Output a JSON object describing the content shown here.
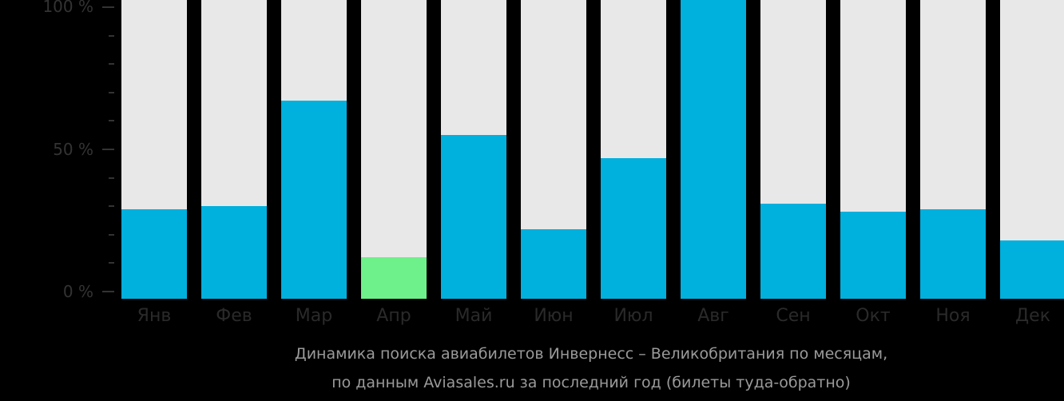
{
  "chart_data": {
    "type": "bar",
    "title": "Динамика поиска авиабилетов Инвернесс – Великобритания по месяцам,",
    "subtitle": "по данным Aviasales.ru за последний год (билеты туда-обратно)",
    "xlabel": "",
    "ylabel": "",
    "ylim": [
      0,
      100
    ],
    "y_ticks": [
      "0 %",
      "50 %",
      "100 %"
    ],
    "grid": false,
    "legend": null,
    "categories": [
      "Янв",
      "Фев",
      "Мар",
      "Апр",
      "Май",
      "Июн",
      "Июл",
      "Авг",
      "Сен",
      "Окт",
      "Ноя",
      "Дек"
    ],
    "values": [
      29,
      30,
      67,
      12,
      55,
      22,
      47,
      100,
      31,
      28,
      29,
      18
    ],
    "highlight_index": 3,
    "colors": {
      "bar": "#00b0dd",
      "highlight": "#6ef08a",
      "background_bar": "#e8e8e8"
    }
  },
  "axis": {
    "y0": "0 %",
    "y50": "50 %",
    "y100": "100 %"
  },
  "caption": {
    "line1": "Динамика поиска авиабилетов Инвернесс – Великобритания по месяцам,",
    "line2": "по данным Aviasales.ru за последний год (билеты туда-обратно)"
  }
}
